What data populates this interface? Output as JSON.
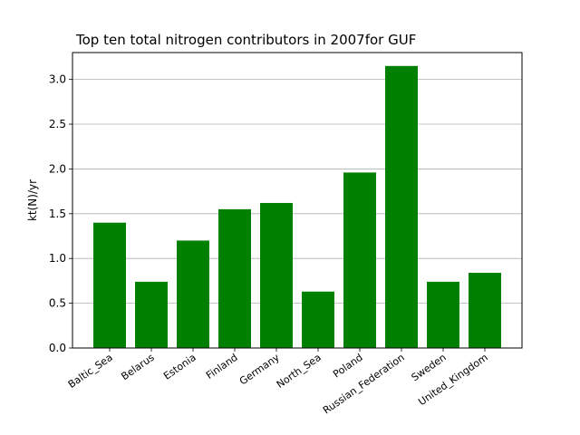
{
  "chart_data": {
    "type": "bar",
    "title": "Top ten total nitrogen contributors in 2007for  GUF",
    "xlabel": "",
    "ylabel": "kt(N)/yr",
    "categories": [
      "Baltic_Sea",
      "Belarus",
      "Estonia",
      "Finland",
      "Germany",
      "North_Sea",
      "Poland",
      "Russian_Federation",
      "Sweden",
      "United_Kingdom"
    ],
    "values": [
      1.4,
      0.74,
      1.2,
      1.55,
      1.62,
      0.63,
      1.96,
      3.15,
      0.74,
      0.84
    ],
    "ylim": [
      0,
      3.3
    ],
    "yticks": [
      0.0,
      0.5,
      1.0,
      1.5,
      2.0,
      2.5,
      3.0
    ],
    "ytick_labels": [
      "0.0",
      "0.5",
      "1.0",
      "1.5",
      "2.0",
      "2.5",
      "3.0"
    ],
    "grid": "y",
    "bar_color": "#008000"
  }
}
